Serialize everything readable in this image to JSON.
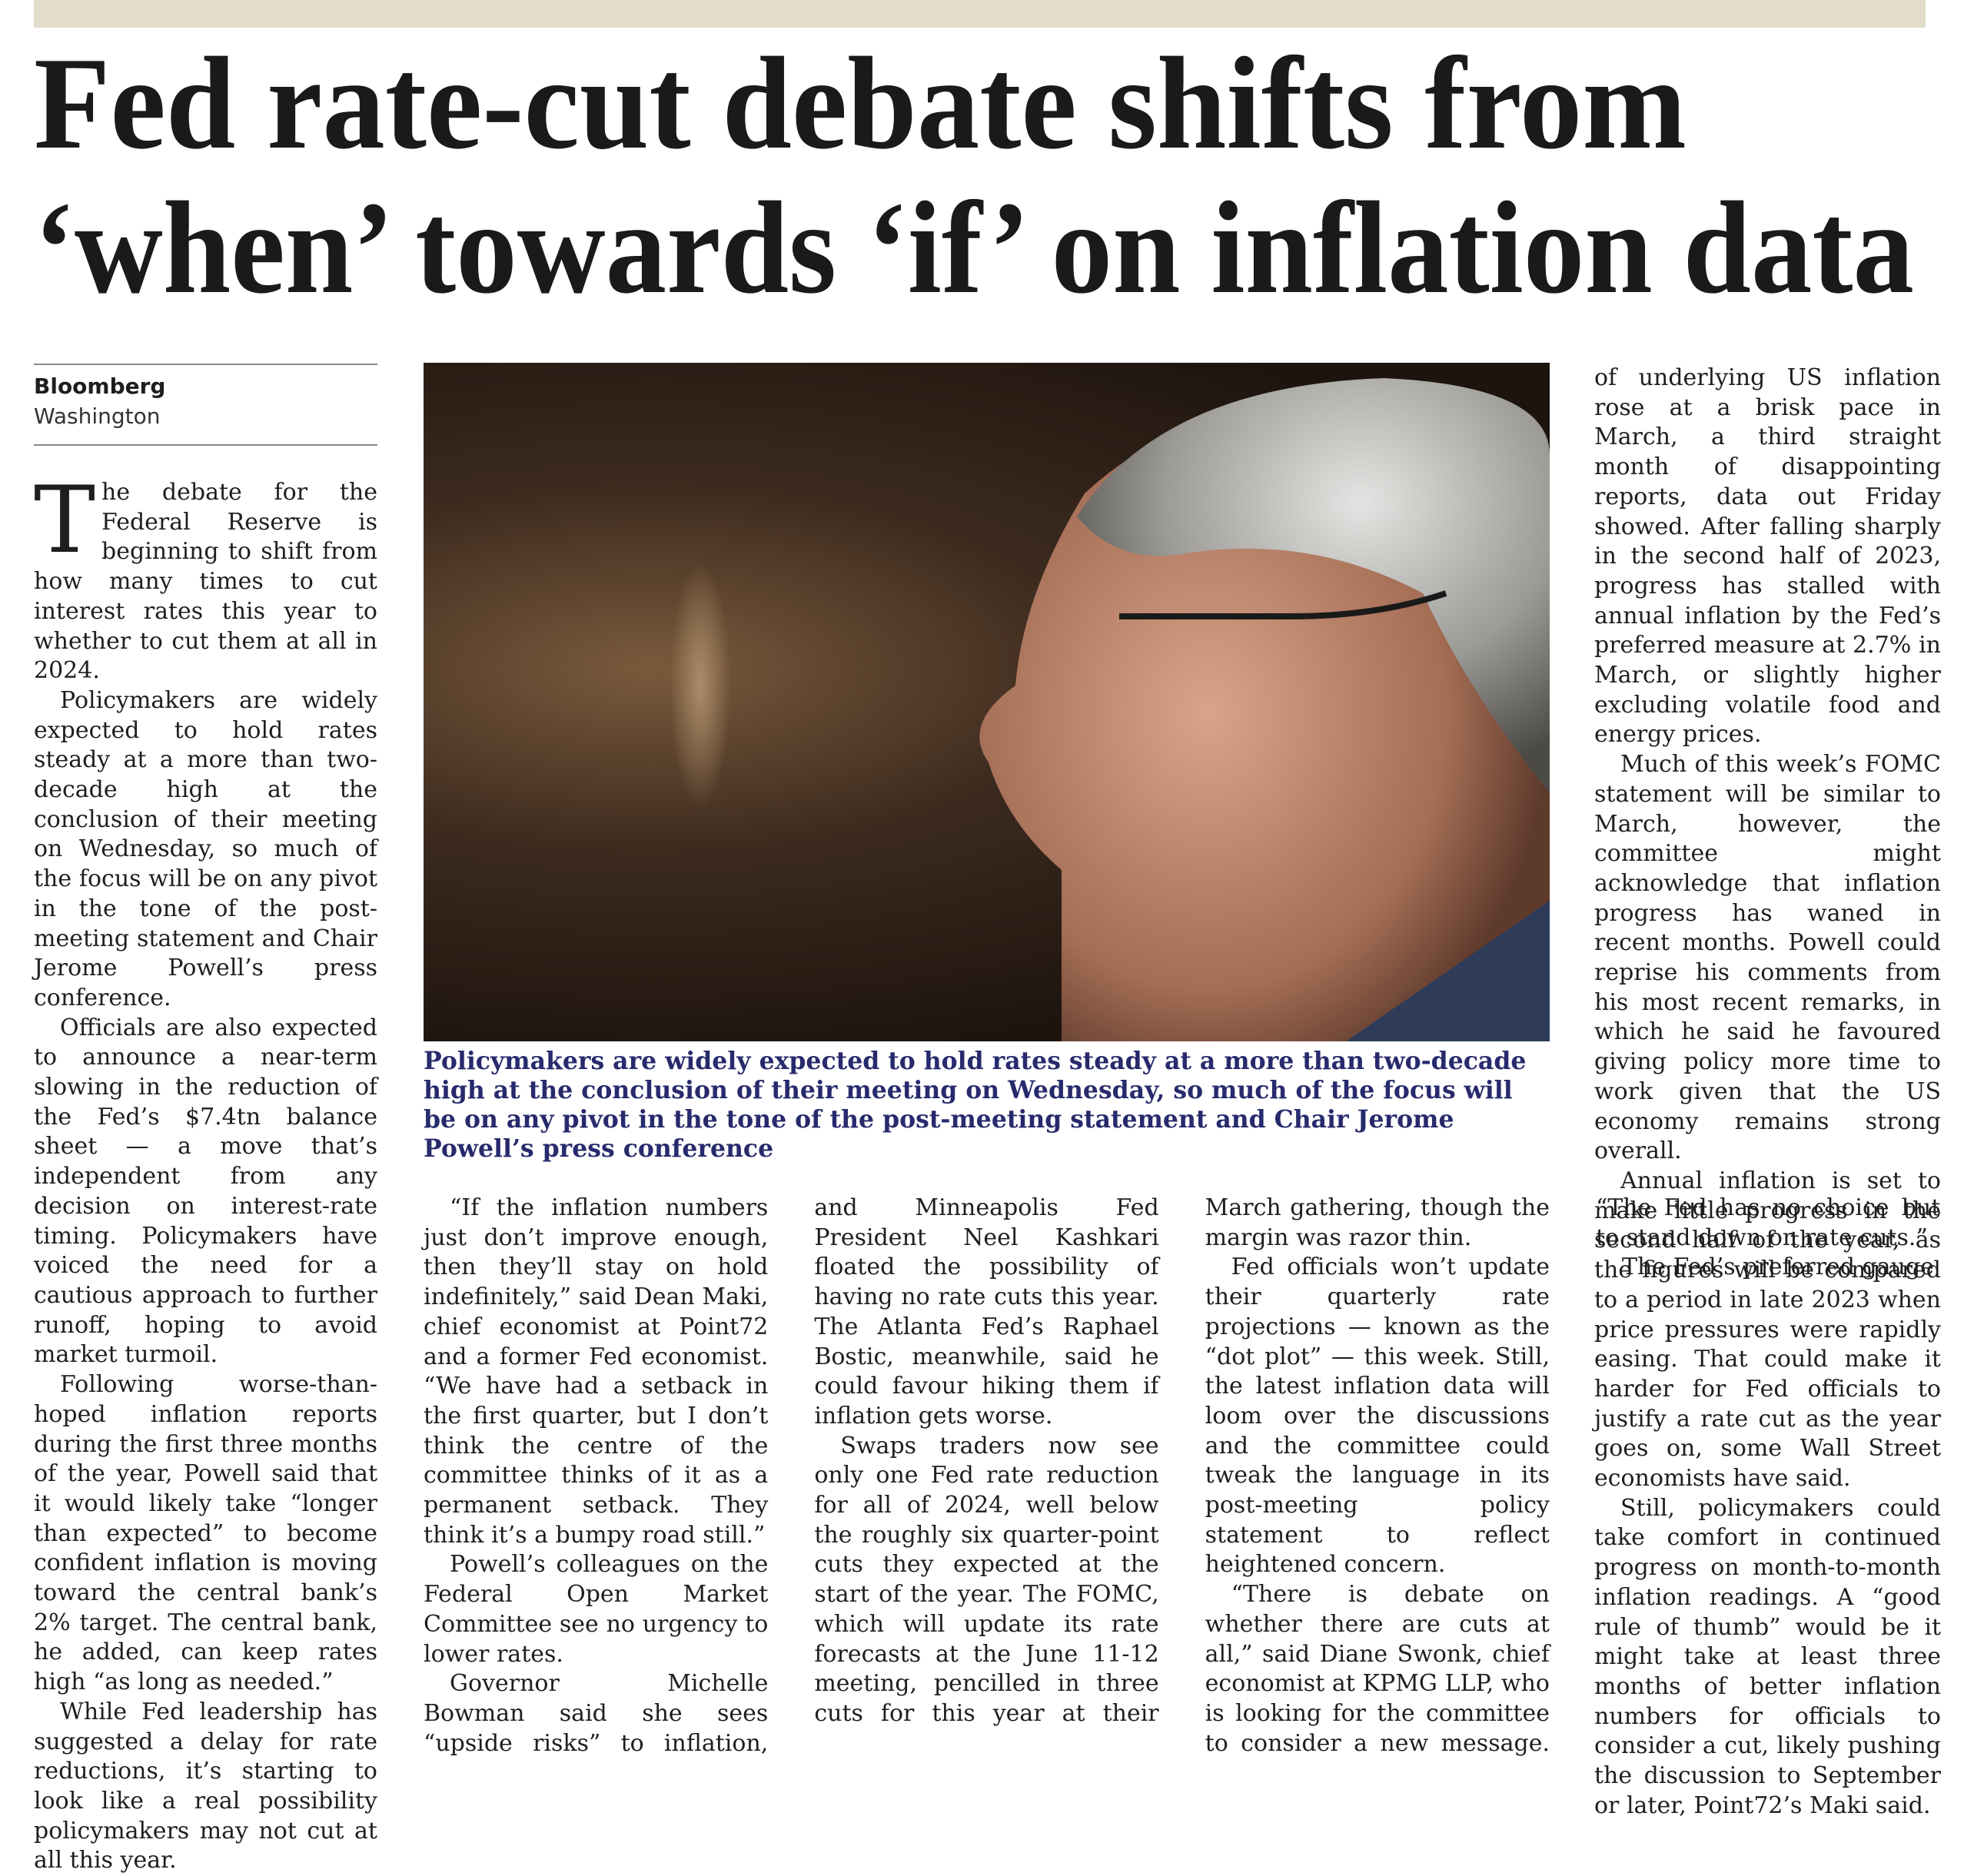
{
  "header": {
    "headline": [
      "Fed rate-cut debate shifts from",
      "‘when’ towards ‘if’ on inflation data"
    ]
  },
  "byline": {
    "source": "Bloomberg",
    "location": "Washington"
  },
  "photo": {
    "caption": "Policymakers are widely expected to hold rates steady at a more than two-decade high at the conclusion of their meeting on Wednesday, so much of the focus will be on any pivot in the tone of the post-meeting statement and Chair Jerome Powell’s press conference"
  },
  "article": {
    "columns": [
      [
        "The debate for the Federal Reserve is beginning to shift from how many times to cut interest rates this year to whether to cut them at all in 2024.",
        "Policymakers are widely expected to hold rates steady at a more than two-decade high at the conclusion of their meeting on Wednesday, so much of the focus will be on any pivot in the tone of the post-meeting statement and Chair Jerome Powell’s press conference.",
        "Officials are also expected to announce a near-term slowing in the reduction of the Fed’s $7.4tn balance sheet — a move that’s independent from any decision on interest-rate timing. Policymakers have voiced the need for a cautious approach to further runoff, hoping to avoid market turmoil.",
        "Following worse-than-hoped inflation reports during the first three months of the year, Powell said that it would likely take “longer than expected” to become confident inflation is moving toward the central bank’s 2% target. The central bank, he added, can keep rates high “as long as needed.”",
        "While Fed leadership has suggested a delay for rate reductions, it’s starting to look like a real possibility policymakers may not cut at all this year."
      ],
      [
        "“If the inflation numbers just don’t improve enough, then they’ll stay on hold indefinitely,” said Dean Maki, chief economist at Point72 and a former Fed economist. “We have had a setback in the first quarter, but I don’t think the centre of the committee thinks of it as a permanent setback. They think it’s a bumpy road still.”",
        "Powell’s colleagues on the Federal Open Market Committee see no urgency to lower rates.",
        "Governor Michelle Bowman said she sees “upside risks” to inflation, and Minneapolis Fed President Neel Kashkari floated the possibility of having no rate cuts this year. The Atlanta Fed’s Raphael Bostic, meanwhile, said he could favour hiking them if inflation gets worse.",
        "Swaps traders now see only one Fed rate reduction for all of 2024, well below the roughly six quarter-point cuts they expected at the start of the year. The FOMC, which will update its rate forecasts at the June 11-12 meeting, pencilled in three cuts for this year at their March gathering, though the margin was razor thin.",
        "Fed officials won’t update their quarterly rate projections — known as the “dot plot” — this week. Still, the latest inflation data will loom over the discussions and the committee could tweak the language in its post-meeting policy statement to reflect heightened concern.",
        "“There is debate on whether there are cuts at all,” said Diane Swonk, chief economist at KPMG LLP, who is looking for the committee to consider a new message. “The Fed has no choice but to stand down on rate cuts.”",
        "The Fed’s preferred gauge"
      ],
      [
        "of underlying US inflation rose at a brisk pace in March, a third straight month of disappointing reports, data out Friday showed. After falling sharply in the second half of 2023, progress has stalled with annual inflation by the Fed’s preferred measure at 2.7% in March, or slightly higher excluding volatile food and energy prices.",
        "Much of this week’s FOMC statement will be similar to March, however, the committee might acknowledge that inflation progress has waned in recent months. Powell could reprise his comments from his most recent remarks, in which he said he favoured giving policy more time to work given that the US economy remains strong overall.",
        "Annual inflation is set to make little progress in the second half of the year, as the figures will be compared to a period in late 2023 when price pressures were rapidly easing. That could make it harder for Fed officials to justify a rate cut as the year goes on, some Wall Street economists have said.",
        "Still, policymakers could take comfort in continued progress on month-to-month inflation readings. A “good rule of thumb” would be it might take at least three months of better inflation numbers for officials to consider a cut, likely pushing the discussion to September or later, Point72’s Maki said."
      ]
    ]
  }
}
